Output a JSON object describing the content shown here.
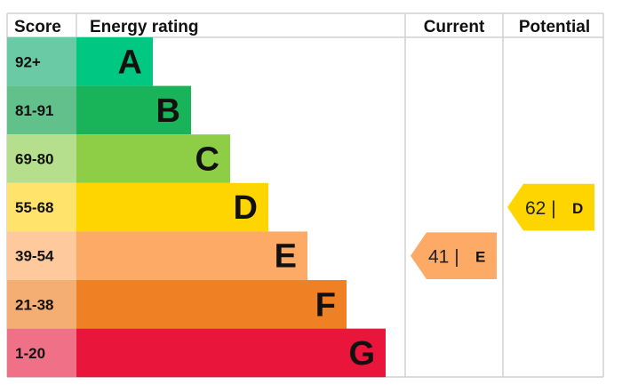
{
  "chart_data": {
    "type": "bar",
    "headers": {
      "score": "Score",
      "rating": "Energy rating",
      "current": "Current",
      "potential": "Potential"
    },
    "bands": [
      {
        "score": "92+",
        "letter": "A",
        "color": "#00c781",
        "score_bg": "#6acaa6"
      },
      {
        "score": "81-91",
        "letter": "B",
        "color": "#19b459",
        "score_bg": "#62c08a"
      },
      {
        "score": "69-80",
        "letter": "C",
        "color": "#8dce46",
        "score_bg": "#b6df8d"
      },
      {
        "score": "55-68",
        "letter": "D",
        "color": "#ffd500",
        "score_bg": "#ffe36a"
      },
      {
        "score": "39-54",
        "letter": "E",
        "color": "#fcaa65",
        "score_bg": "#fdc99d"
      },
      {
        "score": "21-38",
        "letter": "F",
        "color": "#ef8023",
        "score_bg": "#f4ad73"
      },
      {
        "score": "1-20",
        "letter": "G",
        "color": "#e9153b",
        "score_bg": "#f07187"
      }
    ],
    "current": {
      "value": 41,
      "letter": "E",
      "value_label": "41 |",
      "color": "#fcaa65"
    },
    "potential": {
      "value": 62,
      "letter": "D",
      "value_label": "62 |",
      "color": "#ffd500"
    }
  }
}
